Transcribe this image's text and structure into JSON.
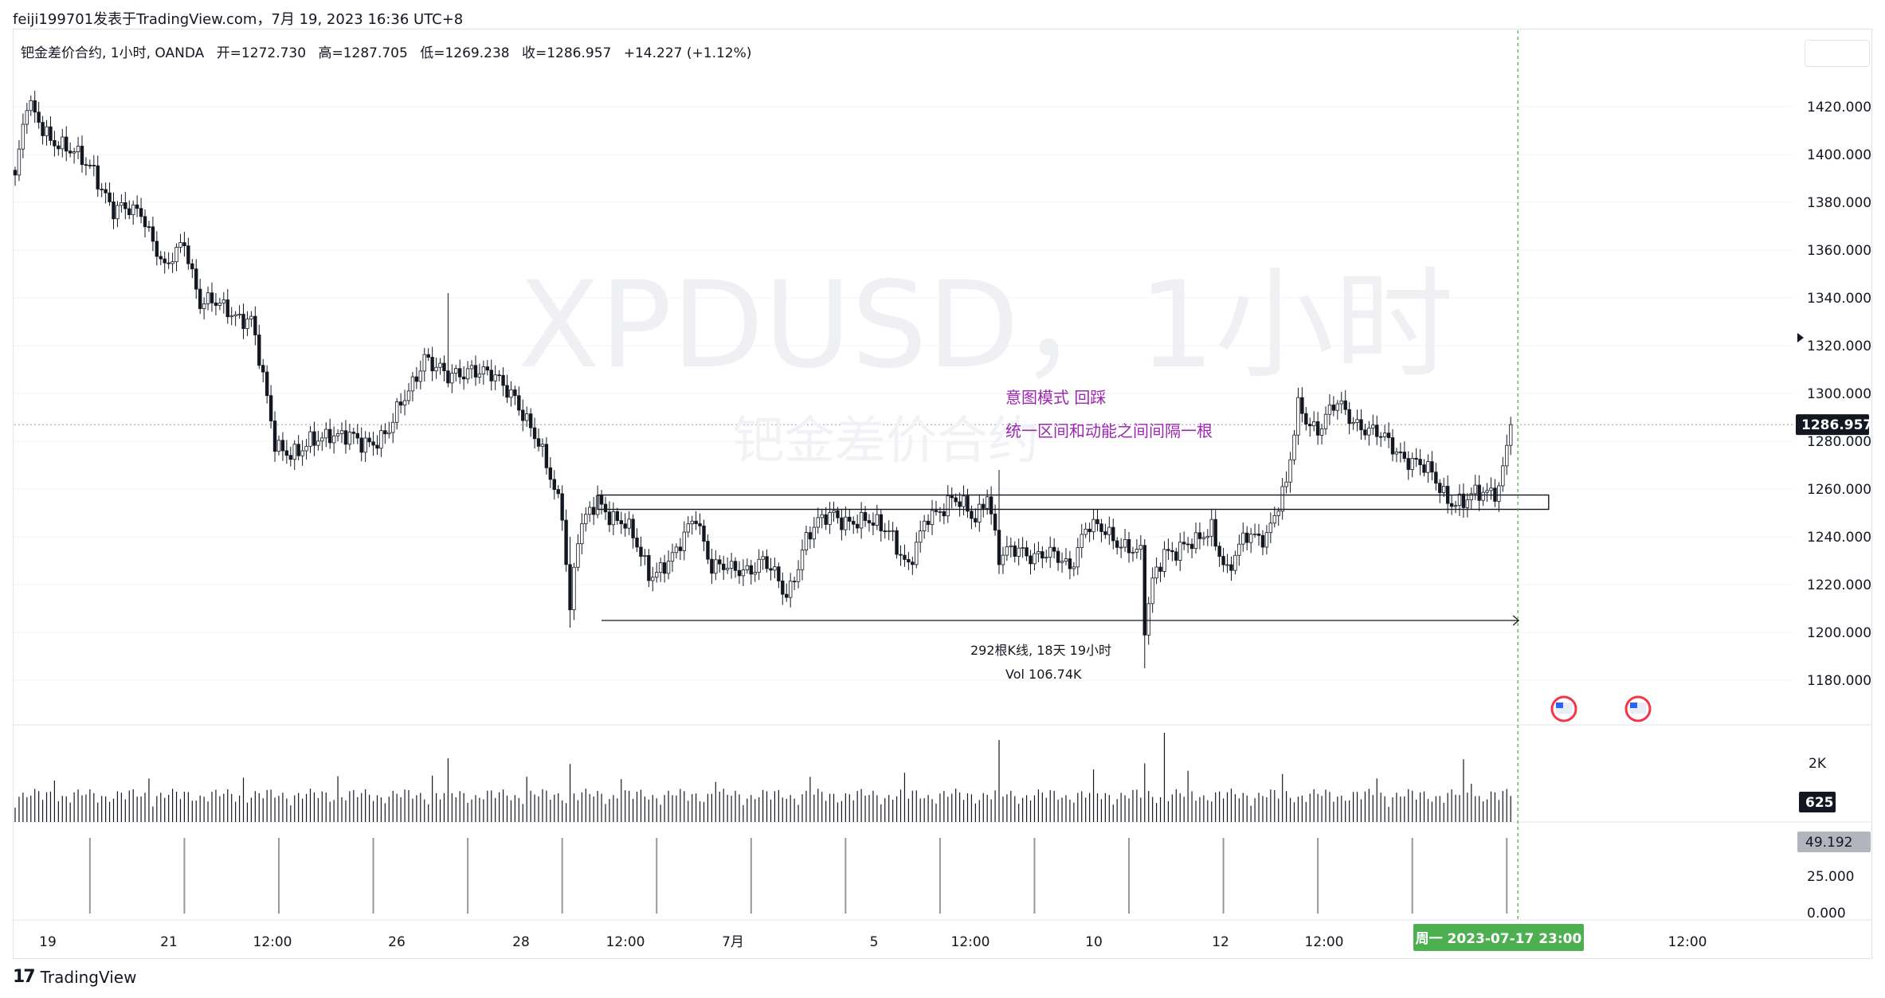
{
  "header": {
    "publish_line": "feiji199701发表于TradingView.com，7月 19, 2023 16:36 UTC+8"
  },
  "legend": {
    "symbol": "钯金差价合约, 1小时, OANDA",
    "open": "开=1272.730",
    "high": "高=1287.705",
    "low": "低=1269.238",
    "close": "收=1286.957",
    "change": "+14.227 (+1.12%)"
  },
  "watermark": {
    "main": "XPDUSD，1小时",
    "sub": "钯金差价合约"
  },
  "annotations": {
    "note1": "意图模式 回踩",
    "note2": "统一区间和动能之间间隔一根",
    "measure_bars": "292根K线, 18天 19小时",
    "measure_vol": "Vol 106.74K"
  },
  "price_axis": {
    "ticks": [
      "1420.000",
      "1400.000",
      "1380.000",
      "1360.000",
      "1340.000",
      "1320.000",
      "1300.000",
      "1280.000",
      "1260.000",
      "1240.000",
      "1220.000",
      "1200.000",
      "1180.000"
    ],
    "last_price": "1286.957"
  },
  "volume_axis": {
    "tick": "2K",
    "last_value": "625"
  },
  "indicator_axis": {
    "ticks": [
      "25.000",
      "0.000"
    ],
    "last_value": "49.192"
  },
  "time_axis": {
    "labels": [
      "19",
      "21",
      "12:00",
      "26",
      "28",
      "12:00",
      "7月",
      "5",
      "12:00",
      "10",
      "12",
      "12:00",
      "12:00"
    ],
    "crosshair_label": "周一  2023-07-17   23:00"
  },
  "brand": {
    "logo": "17",
    "name": "TradingView"
  },
  "colors": {
    "candle": "#131722",
    "note_text": "#9c27b0",
    "crosshair_label_bg": "#4caf50",
    "price_label_bg": "#131722",
    "indicator_label_bg": "#b2b5be",
    "indicator_bars": "#9598a1",
    "dotted_line": "#9598a1"
  },
  "chart_data": {
    "type": "candlestick",
    "symbol": "XPDUSD",
    "interval": "1小时",
    "ylim": [
      1165,
      1430
    ],
    "path_keypoints": [
      [
        0,
        1390
      ],
      [
        3,
        1420
      ],
      [
        8,
        1410
      ],
      [
        14,
        1400
      ],
      [
        20,
        1395
      ],
      [
        25,
        1375
      ],
      [
        32,
        1378
      ],
      [
        38,
        1350
      ],
      [
        43,
        1365
      ],
      [
        47,
        1338
      ],
      [
        55,
        1335
      ],
      [
        60,
        1330
      ],
      [
        66,
        1280
      ],
      [
        72,
        1274
      ],
      [
        80,
        1285
      ],
      [
        88,
        1278
      ],
      [
        95,
        1285
      ],
      [
        100,
        1300
      ],
      [
        104,
        1317
      ],
      [
        110,
        1305
      ],
      [
        116,
        1312
      ],
      [
        122,
        1305
      ],
      [
        127,
        1300
      ],
      [
        131,
        1285
      ],
      [
        136,
        1265
      ],
      [
        139,
        1252
      ],
      [
        141,
        1210
      ],
      [
        143,
        1240
      ],
      [
        148,
        1255
      ],
      [
        155,
        1245
      ],
      [
        161,
        1225
      ],
      [
        168,
        1232
      ],
      [
        173,
        1250
      ],
      [
        177,
        1228
      ],
      [
        182,
        1225
      ],
      [
        190,
        1230
      ],
      [
        196,
        1215
      ],
      [
        201,
        1240
      ],
      [
        208,
        1250
      ],
      [
        215,
        1245
      ],
      [
        222,
        1245
      ],
      [
        227,
        1225
      ],
      [
        232,
        1250
      ],
      [
        238,
        1255
      ],
      [
        244,
        1248
      ],
      [
        247,
        1260
      ],
      [
        250,
        1230
      ],
      [
        255,
        1235
      ],
      [
        262,
        1232
      ],
      [
        268,
        1228
      ],
      [
        272,
        1245
      ],
      [
        278,
        1240
      ],
      [
        283,
        1237
      ],
      [
        286,
        1232
      ],
      [
        287,
        1200
      ],
      [
        289,
        1220
      ],
      [
        292,
        1235
      ],
      [
        300,
        1236
      ],
      [
        304,
        1245
      ],
      [
        308,
        1225
      ],
      [
        313,
        1240
      ],
      [
        318,
        1242
      ],
      [
        323,
        1260
      ],
      [
        326,
        1295
      ],
      [
        331,
        1285
      ],
      [
        336,
        1295
      ],
      [
        340,
        1290
      ],
      [
        345,
        1283
      ],
      [
        350,
        1278
      ],
      [
        355,
        1272
      ],
      [
        360,
        1265
      ],
      [
        364,
        1257
      ],
      [
        368,
        1254
      ],
      [
        373,
        1258
      ],
      [
        377,
        1262
      ],
      [
        380,
        1286
      ]
    ],
    "candle_count": 381,
    "spikes": [
      {
        "bar": 110,
        "high": 1342,
        "low": 1305
      },
      {
        "bar": 141,
        "high": 1240,
        "low": 1202
      },
      {
        "bar": 250,
        "high": 1268,
        "low": 1225
      },
      {
        "bar": 287,
        "high": 1232,
        "low": 1185
      },
      {
        "bar": 368,
        "high": 1262,
        "low": 1248
      }
    ],
    "range_box": {
      "top": 1256,
      "bottom": 1253,
      "start_bar": 148,
      "end_bar": 386
    },
    "measure_arrow": {
      "price": 1205,
      "start_bar": 149,
      "end_bar": 380
    },
    "last_price": 1286.957,
    "volume": {
      "max_label": "2K",
      "last": 625
    },
    "indicator": {
      "last": 49.192,
      "ylim": [
        0,
        50
      ]
    },
    "crosshair_bar": 381
  }
}
